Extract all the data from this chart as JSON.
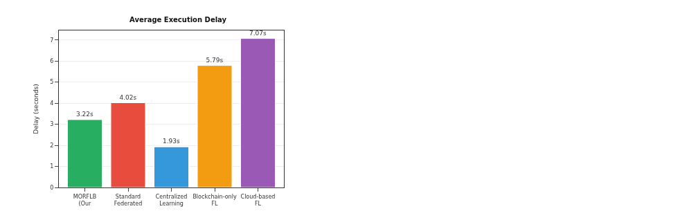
{
  "chart_data": {
    "type": "bar",
    "title": "Average Execution Delay",
    "ylabel": "Delay (seconds)",
    "categories": [
      "MORFLB\n(Our",
      "Standard\nFederated",
      "Centralized\nLearning",
      "Blockchain-only\nFL",
      "Cloud-based\nFL"
    ],
    "values": [
      3.22,
      4.02,
      1.93,
      5.79,
      7.07
    ],
    "colors": [
      "#27ae60",
      "#e74c3c",
      "#3498db",
      "#f39c12",
      "#9b59b6"
    ],
    "value_labels": [
      "3.22s",
      "4.02s",
      "1.93s",
      "5.79s",
      "7.07s"
    ],
    "ylim": [
      0,
      7.45
    ],
    "yticks": [
      0,
      1,
      2,
      3,
      4,
      5,
      6,
      7
    ],
    "grid": "y"
  }
}
